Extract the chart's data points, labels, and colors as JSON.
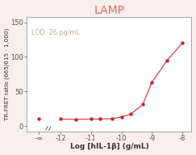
{
  "title": "LAMP",
  "title_color": "#e8636a",
  "xlabel": "Log [hIL-1β] (g/mL)",
  "ylabel": "TR-FRET ratio (665/615 · 1,000)",
  "lod_text": "LOD: 26 pg/mL",
  "lod_color": "#b8aca0",
  "x_display": [
    -12.7,
    -12,
    -11.5,
    -11,
    -10.7,
    -10.3,
    -10,
    -9.7,
    -9.3,
    -9,
    -8.5,
    -8
  ],
  "y_values": [
    10,
    10,
    9.5,
    10,
    10,
    10.5,
    13,
    17,
    31,
    63,
    95,
    120
  ],
  "line_color": "#d94050",
  "marker_color": "#c0282e",
  "xtick_positions": [
    -12.7,
    -12,
    -11,
    -10,
    -9,
    -8
  ],
  "xticklabels": [
    "-∞",
    "-12",
    "-11",
    "-10",
    "-9",
    "-8"
  ],
  "yticks": [
    0,
    50,
    100,
    150
  ],
  "ylim": [
    -8,
    158
  ],
  "xlim": [
    -13.1,
    -7.7
  ],
  "background_color": "#f5f0eb",
  "plot_bg_color": "#ffffff"
}
